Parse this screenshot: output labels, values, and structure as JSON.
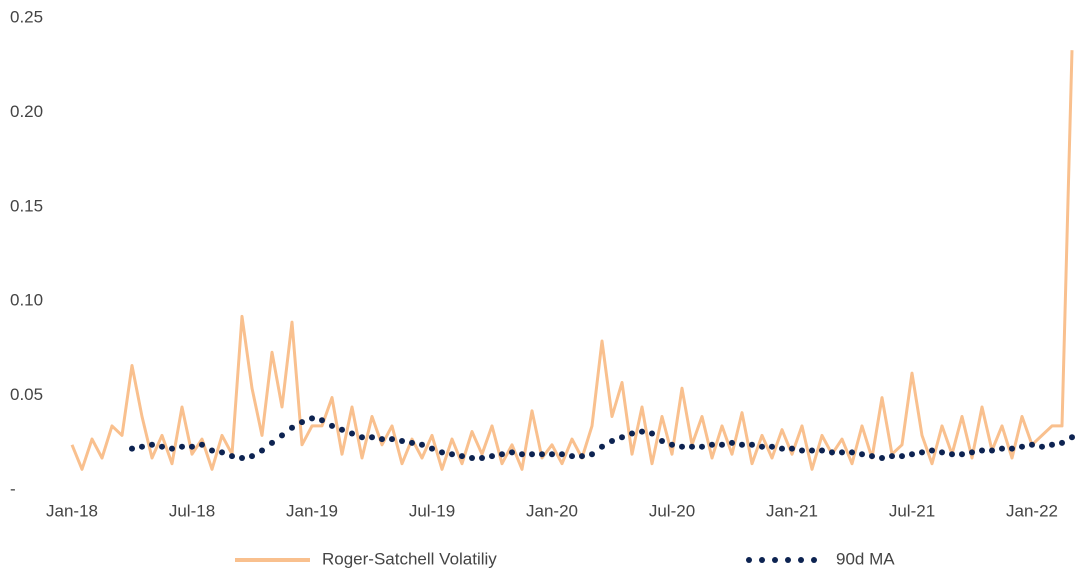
{
  "chart_data": {
    "type": "line",
    "x": [
      0,
      0.5,
      1,
      1.5,
      2,
      2.5,
      3,
      3.5,
      4,
      4.5,
      5,
      5.5,
      6,
      6.5,
      7,
      7.5,
      8,
      8.5,
      9,
      9.5,
      10,
      10.5,
      11,
      11.5,
      12,
      12.5,
      13,
      13.5,
      14,
      14.5,
      15,
      15.5,
      16,
      16.5,
      17,
      17.5,
      18,
      18.5,
      19,
      19.5,
      20,
      20.5,
      21,
      21.5,
      22,
      22.5,
      23,
      23.5,
      24,
      24.5,
      25,
      25.5,
      26,
      26.5,
      27,
      27.5,
      28,
      28.5,
      29,
      29.5,
      30,
      30.5,
      31,
      31.5,
      32,
      32.5,
      33,
      33.5,
      34,
      34.5,
      35,
      35.5,
      36,
      36.5,
      37,
      37.5,
      38,
      38.5,
      39,
      39.5,
      40,
      40.5,
      41,
      41.5,
      42,
      42.5,
      43,
      43.5,
      44,
      44.5,
      45,
      45.5,
      46,
      46.5,
      47,
      47.5,
      48,
      48.5,
      49,
      49.5,
      50
    ],
    "xlim": [
      0,
      50
    ],
    "xticks": [
      {
        "value": 0,
        "label": "Jan-18"
      },
      {
        "value": 6,
        "label": "Jul-18"
      },
      {
        "value": 12,
        "label": "Jan-19"
      },
      {
        "value": 18,
        "label": "Jul-19"
      },
      {
        "value": 24,
        "label": "Jan-20"
      },
      {
        "value": 30,
        "label": "Jul-20"
      },
      {
        "value": 36,
        "label": "Jan-21"
      },
      {
        "value": 42,
        "label": "Jul-21"
      },
      {
        "value": 48,
        "label": "Jan-22"
      }
    ],
    "ylim": [
      0,
      0.25
    ],
    "yticks": [
      {
        "value": 0,
        "label": "-"
      },
      0.05,
      {
        "value": 0.1,
        "label": "0.10"
      },
      0.15,
      {
        "value": 0.2,
        "label": "0.20"
      },
      0.25
    ],
    "legend": "bottom",
    "series": [
      {
        "name": "Roger-Satchell Volatiliy",
        "color": "#f9c08e",
        "style": "line",
        "values": [
          0.025,
          0.012,
          0.028,
          0.018,
          0.035,
          0.03,
          0.067,
          0.04,
          0.018,
          0.03,
          0.015,
          0.045,
          0.02,
          0.028,
          0.012,
          0.03,
          0.02,
          0.093,
          0.055,
          0.03,
          0.074,
          0.045,
          0.09,
          0.025,
          0.035,
          0.035,
          0.05,
          0.02,
          0.045,
          0.018,
          0.04,
          0.025,
          0.035,
          0.015,
          0.028,
          0.018,
          0.03,
          0.012,
          0.028,
          0.015,
          0.032,
          0.02,
          0.035,
          0.015,
          0.025,
          0.012,
          0.043,
          0.018,
          0.025,
          0.015,
          0.028,
          0.018,
          0.035,
          0.08,
          0.04,
          0.058,
          0.02,
          0.045,
          0.015,
          0.04,
          0.02,
          0.055,
          0.025,
          0.04,
          0.018,
          0.035,
          0.02,
          0.042,
          0.015,
          0.03,
          0.018,
          0.033,
          0.02,
          0.035,
          0.012,
          0.03,
          0.02,
          0.028,
          0.015,
          0.035,
          0.018,
          0.05,
          0.02,
          0.025,
          0.063,
          0.03,
          0.015,
          0.035,
          0.02,
          0.04,
          0.018,
          0.045,
          0.022,
          0.035,
          0.018,
          0.04,
          0.025,
          0.03,
          0.035,
          0.035,
          0.234
        ]
      },
      {
        "name": "90d MA",
        "color": "#0d2351",
        "style": "dots",
        "values": [
          null,
          null,
          null,
          null,
          null,
          null,
          0.023,
          0.024,
          0.025,
          0.024,
          0.023,
          0.024,
          0.024,
          0.025,
          0.022,
          0.021,
          0.019,
          0.018,
          0.019,
          0.022,
          0.026,
          0.03,
          0.034,
          0.037,
          0.039,
          0.038,
          0.035,
          0.033,
          0.031,
          0.029,
          0.029,
          0.028,
          0.028,
          0.027,
          0.026,
          0.025,
          0.023,
          0.021,
          0.02,
          0.019,
          0.018,
          0.018,
          0.019,
          0.02,
          0.021,
          0.02,
          0.02,
          0.02,
          0.02,
          0.02,
          0.019,
          0.019,
          0.02,
          0.024,
          0.027,
          0.029,
          0.031,
          0.032,
          0.031,
          0.027,
          0.025,
          0.024,
          0.024,
          0.024,
          0.025,
          0.025,
          0.026,
          0.025,
          0.025,
          0.024,
          0.024,
          0.023,
          0.023,
          0.022,
          0.022,
          0.022,
          0.021,
          0.021,
          0.021,
          0.02,
          0.019,
          0.018,
          0.019,
          0.019,
          0.02,
          0.021,
          0.022,
          0.021,
          0.02,
          0.02,
          0.021,
          0.022,
          0.022,
          0.023,
          0.023,
          0.024,
          0.025,
          0.024,
          0.025,
          0.026,
          0.029
        ]
      }
    ]
  }
}
